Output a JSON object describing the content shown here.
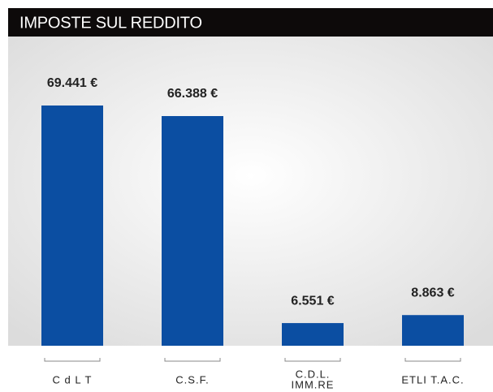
{
  "chart_data": {
    "type": "bar",
    "title": "IMPOSTE SUL REDDITO",
    "categories": [
      "C d L T",
      "C.S.F.",
      "C.D.L.\nIMM.RE",
      "ETLI T.A.C."
    ],
    "values": [
      69441,
      66388,
      6551,
      8863
    ],
    "value_labels": [
      "69.441 €",
      "66.388 €",
      "6.551 €",
      "8.863 €"
    ],
    "color": "#0b4ea2"
  }
}
